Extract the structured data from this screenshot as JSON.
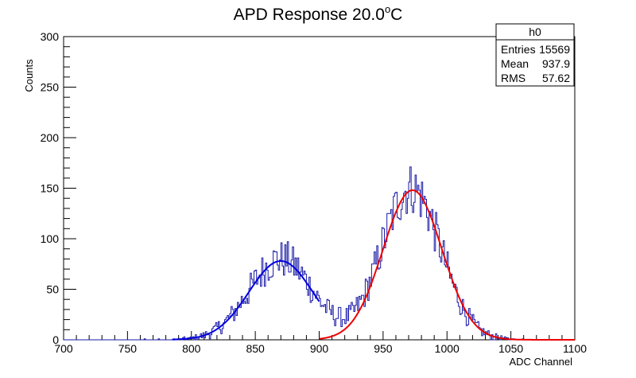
{
  "chart_data": {
    "type": "histogram",
    "title_main": "APD Response 20.0",
    "title_degree": "o",
    "title_unit": "C",
    "xlabel": "ADC Channel",
    "ylabel": "Counts",
    "xlim": [
      700,
      1100
    ],
    "ylim": [
      0,
      300
    ],
    "x_ticks": [
      "700",
      "750",
      "800",
      "850",
      "900",
      "950",
      "1000",
      "1050",
      "1100"
    ],
    "y_ticks": [
      "0",
      "50",
      "100",
      "150",
      "200",
      "250",
      "300"
    ],
    "bin_width": 1,
    "series": [
      {
        "kind": "histogram",
        "color": "#1a1aa6",
        "peaks": [
          {
            "mean": 870,
            "sigma": 25,
            "amplitude": 80
          },
          {
            "mean": 972,
            "sigma": 23,
            "amplitude": 150
          }
        ],
        "noise_fraction": 0.12
      },
      {
        "kind": "gaussian_fit",
        "color": "#0000e0",
        "mean": 870,
        "sigma": 25,
        "amplitude": 78,
        "x_range": [
          785,
          900
        ]
      },
      {
        "kind": "gaussian_fit",
        "color": "#ee0000",
        "mean": 973,
        "sigma": 23,
        "amplitude": 148,
        "x_range": [
          900,
          1100
        ]
      }
    ]
  },
  "stats_box": {
    "name": "h0",
    "rows": [
      {
        "label": "Entries",
        "value": "15569"
      },
      {
        "label": "Mean",
        "value": "937.9"
      },
      {
        "label": "RMS",
        "value": "57.62"
      }
    ]
  }
}
